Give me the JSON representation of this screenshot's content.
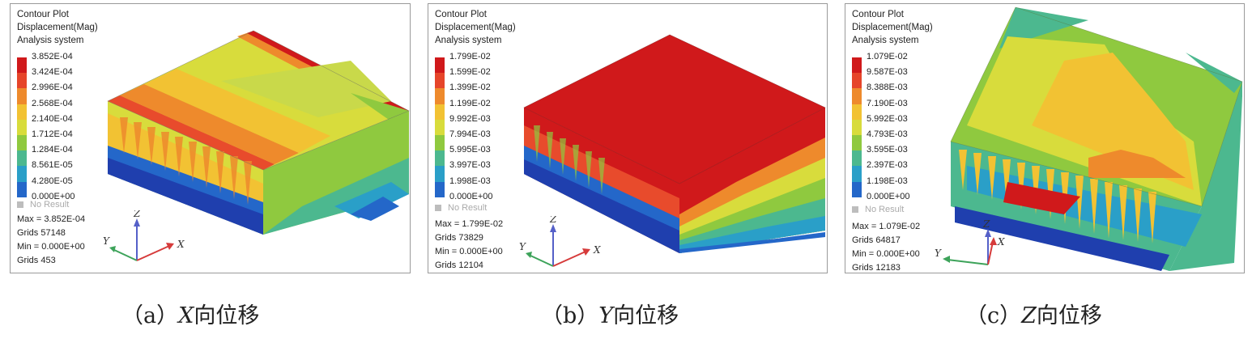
{
  "panels": [
    {
      "id": "a",
      "header": [
        "Contour Plot",
        "Displacement(Mag)",
        "Analysis system"
      ],
      "legend": [
        "3.852E-04",
        "3.424E-04",
        "2.996E-04",
        "2.568E-04",
        "2.140E-04",
        "1.712E-04",
        "1.284E-04",
        "8.561E-05",
        "4.280E-05",
        "0.000E+00"
      ],
      "no_result": "No Result",
      "stats": [
        "Max = 3.852E-04",
        "Grids 57148",
        "Min = 0.000E+00",
        "Grids 453"
      ],
      "axes": {
        "z": "Z",
        "y": "Y",
        "x": "X"
      },
      "caption": {
        "prefix": "（a）",
        "axis": "X",
        "suffix": "向位移"
      }
    },
    {
      "id": "b",
      "header": [
        "Contour Plot",
        "Displacement(Mag)",
        "Analysis system"
      ],
      "legend": [
        "1.799E-02",
        "1.599E-02",
        "1.399E-02",
        "1.199E-02",
        "9.992E-03",
        "7.994E-03",
        "5.995E-03",
        "3.997E-03",
        "1.998E-03",
        "0.000E+00"
      ],
      "no_result": "No Result",
      "stats": [
        "Max = 1.799E-02",
        "Grids 73829",
        "Min = 0.000E+00",
        "Grids 12104"
      ],
      "axes": {
        "z": "Z",
        "y": "Y",
        "x": "X"
      },
      "caption": {
        "prefix": "（b）",
        "axis": "Y",
        "suffix": "向位移"
      }
    },
    {
      "id": "c",
      "header": [
        "Contour Plot",
        "Displacement(Mag)",
        "Analysis system"
      ],
      "legend": [
        "1.079E-02",
        "9.587E-03",
        "8.388E-03",
        "7.190E-03",
        "5.992E-03",
        "4.793E-03",
        "3.595E-03",
        "2.397E-03",
        "1.198E-03",
        "0.000E+00"
      ],
      "no_result": "No Result",
      "stats": [
        "Max = 1.079E-02",
        "Grids 64817",
        "Min = 0.000E+00",
        "Grids 12183"
      ],
      "axes": {
        "z": "Z",
        "y": "Y",
        "x": "X"
      },
      "caption": {
        "prefix": "（c）",
        "axis": "Z",
        "suffix": "向位移"
      }
    }
  ],
  "legend_colors": [
    "#d0191b",
    "#e6452a",
    "#ee8a2c",
    "#f2c233",
    "#d8dc3c",
    "#8fc93f",
    "#4cb88f",
    "#2a9fc8",
    "#2467c9",
    "#1f3fae"
  ]
}
